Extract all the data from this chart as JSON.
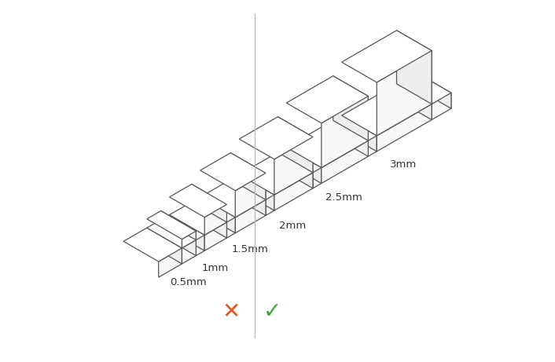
{
  "background_color": "#ffffff",
  "line_color": "#555555",
  "line_width": 0.9,
  "face_top": "#ffffff",
  "face_front": "#f8f8f8",
  "face_side": "#eeeeee",
  "divider_color": "#bbbbbb",
  "divider_lw": 1.0,
  "cross_color": "#e05a1e",
  "check_color": "#3aaa35",
  "symbol_fontsize": 20,
  "label_fontsize": 9.5,
  "label_color": "#333333",
  "labels": [
    "0.5mm",
    "1mm",
    "1.5mm",
    "2mm",
    "2.5mm",
    "3mm"
  ]
}
